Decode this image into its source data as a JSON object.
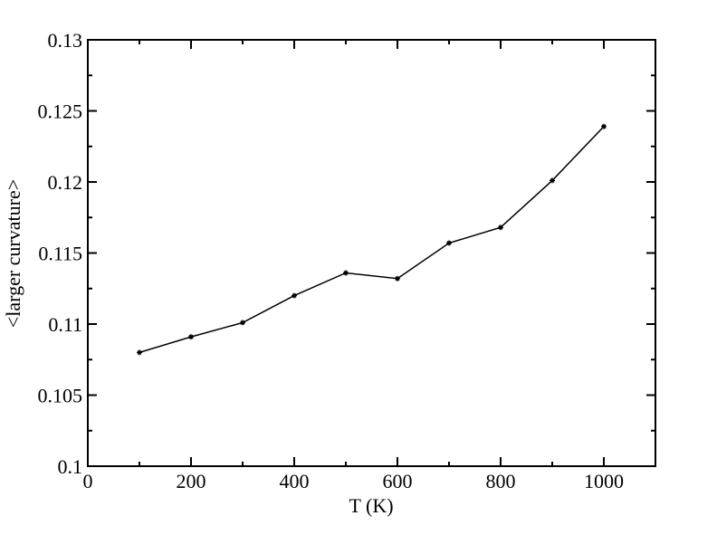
{
  "chart_data": {
    "type": "line",
    "x_label": "T (K)",
    "y_label": "<larger curvature>",
    "x": [
      100,
      200,
      300,
      400,
      500,
      600,
      700,
      800,
      900,
      1000
    ],
    "series": [
      {
        "color": "#000000",
        "values": [
          0.108,
          0.1091,
          0.1101,
          0.112,
          0.1136,
          0.1132,
          0.1157,
          0.1168,
          0.1201,
          0.1239
        ]
      }
    ],
    "xlim": [
      0,
      1100
    ],
    "xticks": [
      0,
      200,
      400,
      600,
      800,
      1000
    ],
    "xminorticks": [
      100,
      300,
      500,
      700,
      900
    ],
    "ylim": [
      0.1,
      0.13
    ],
    "yticks": [
      0.1,
      0.105,
      0.11,
      0.115,
      0.12,
      0.125,
      0.13
    ],
    "yminorticks": [
      0.1025,
      0.1075,
      0.1125,
      0.1175,
      0.1225,
      0.1275
    ],
    "grid": false
  }
}
